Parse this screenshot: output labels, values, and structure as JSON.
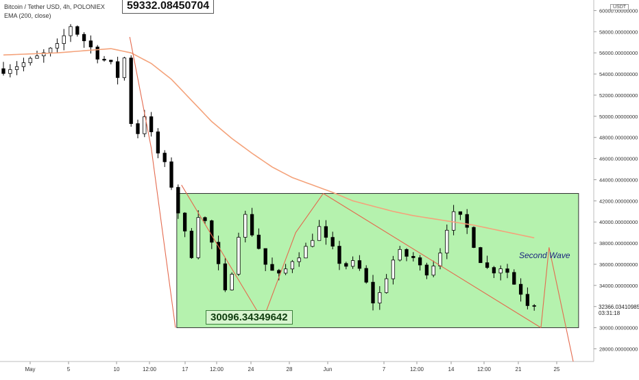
{
  "header": {
    "title": "Bitcoin / Tether USD, 4h, POLONIEX",
    "indicator": "EMA (200, close)"
  },
  "annotations": {
    "peak_value": "59332.08450704",
    "low_value": "30096.34349642",
    "wave_label": "Second Wave"
  },
  "price_scale": {
    "unit": "USDT",
    "current_price": "32366.03410985",
    "countdown": "03:31:18"
  },
  "colors": {
    "up": "#ffffff",
    "down": "#000000",
    "ema": "#f4a27a",
    "box_fill": "#a8f0a0",
    "box_stroke": "#2e2e2e",
    "trend_lines": "#e46a4e"
  },
  "chart_data": {
    "type": "candlestick",
    "x_ticks": [
      "May",
      "5",
      "10",
      "12:00",
      "17",
      "12:00",
      "24",
      "28",
      "Jun",
      "7",
      "12:00",
      "14",
      "12:00",
      "21",
      "25"
    ],
    "y_ticks": [
      "28000.00000000",
      "30000.00000000",
      "32000.00000000",
      "34000.00000000",
      "36000.00000000",
      "38000.00000000",
      "40000.00000000",
      "42000.00000000",
      "44000.00000000",
      "46000.00000000",
      "48000.00000000",
      "50000.00000000",
      "52000.00000000",
      "54000.00000000",
      "56000.00000000",
      "58000.00000000",
      "60000.00000000"
    ],
    "y_values": [
      28000,
      30000,
      32000,
      34000,
      36000,
      38000,
      40000,
      42000,
      44000,
      46000,
      48000,
      50000,
      52000,
      54000,
      56000,
      58000,
      60000
    ],
    "ylim": [
      26800,
      61000
    ],
    "close_path": [
      [
        0,
        54500
      ],
      [
        4,
        55200
      ],
      [
        8,
        56500
      ],
      [
        10,
        58600
      ],
      [
        12,
        57200
      ],
      [
        14,
        55800
      ],
      [
        16,
        54800
      ],
      [
        17,
        53800
      ],
      [
        18,
        55500
      ],
      [
        19,
        49500
      ],
      [
        20,
        48500
      ],
      [
        21,
        50200
      ],
      [
        22,
        48200
      ],
      [
        23,
        46500
      ],
      [
        24,
        45300
      ],
      [
        25,
        43500
      ],
      [
        26,
        41000
      ],
      [
        27,
        38800
      ],
      [
        28,
        37000
      ],
      [
        29,
        40800
      ],
      [
        30,
        40000
      ],
      [
        31,
        38000
      ],
      [
        32,
        35700
      ],
      [
        33,
        33200
      ],
      [
        34,
        35500
      ],
      [
        35,
        39000
      ],
      [
        36,
        40500
      ],
      [
        37,
        39000
      ],
      [
        38,
        37600
      ],
      [
        39,
        36000
      ],
      [
        40,
        35300
      ],
      [
        41,
        34800
      ],
      [
        42,
        35500
      ],
      [
        43,
        36500
      ],
      [
        44,
        37000
      ],
      [
        45,
        37500
      ],
      [
        46,
        38600
      ],
      [
        47,
        39400
      ],
      [
        48,
        38200
      ],
      [
        49,
        37300
      ],
      [
        50,
        36300
      ],
      [
        51,
        35900
      ],
      [
        52,
        36000
      ],
      [
        53,
        35500
      ],
      [
        54,
        34100
      ],
      [
        55,
        32500
      ],
      [
        56,
        33200
      ],
      [
        57,
        34900
      ],
      [
        58,
        36400
      ],
      [
        59,
        37000
      ],
      [
        60,
        36800
      ],
      [
        61,
        36600
      ],
      [
        62,
        35700
      ],
      [
        63,
        35400
      ],
      [
        64,
        36100
      ],
      [
        65,
        37300
      ],
      [
        66,
        39600
      ],
      [
        67,
        40600
      ],
      [
        68,
        40300
      ],
      [
        69,
        39400
      ],
      [
        70,
        38000
      ],
      [
        71,
        36500
      ],
      [
        72,
        35600
      ],
      [
        73,
        35500
      ],
      [
        74,
        35800
      ],
      [
        75,
        35300
      ],
      [
        76,
        34200
      ],
      [
        77,
        33400
      ],
      [
        78,
        32400
      ],
      [
        79,
        32366
      ]
    ],
    "ema_path": [
      [
        0,
        55800
      ],
      [
        8,
        56000
      ],
      [
        16,
        56400
      ],
      [
        19,
        56000
      ],
      [
        22,
        55000
      ],
      [
        25,
        53500
      ],
      [
        28,
        51500
      ],
      [
        31,
        49500
      ],
      [
        34,
        47900
      ],
      [
        37,
        46500
      ],
      [
        40,
        45200
      ],
      [
        43,
        44200
      ],
      [
        46,
        43500
      ],
      [
        49,
        42800
      ],
      [
        52,
        42000
      ],
      [
        55,
        41500
      ],
      [
        58,
        41000
      ],
      [
        61,
        40600
      ],
      [
        64,
        40300
      ],
      [
        67,
        40000
      ],
      [
        70,
        39700
      ],
      [
        73,
        39300
      ],
      [
        76,
        38900
      ],
      [
        79,
        38500
      ]
    ],
    "trend_lines": [
      [
        [
          18.8,
          57500
        ],
        [
          22.0,
          47000
        ],
        [
          25.6,
          30000
        ]
      ],
      [
        [
          26.5,
          43500
        ],
        [
          38.6,
          30700
        ]
      ],
      [
        [
          38.6,
          30700
        ],
        [
          43.5,
          39000
        ],
        [
          47.6,
          42700
        ]
      ],
      [
        [
          47.6,
          42700
        ],
        [
          80.0,
          30000
        ]
      ],
      [
        [
          80.0,
          30000
        ],
        [
          81.2,
          37600
        ],
        [
          84.8,
          26800
        ]
      ]
    ],
    "range_box": {
      "x_start": 25.8,
      "x_end": 85.6,
      "y_top": 42700,
      "y_bottom": 30000
    }
  }
}
